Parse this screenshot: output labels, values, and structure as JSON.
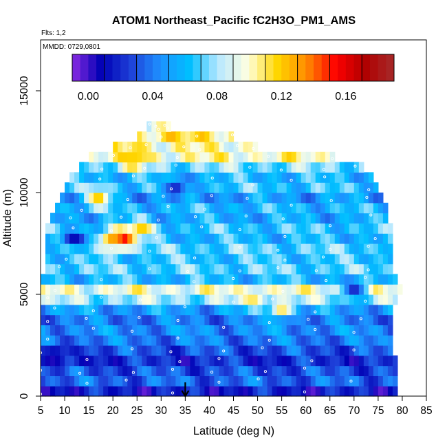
{
  "chart_data": {
    "type": "heatmap",
    "title": "ATOM1 Northeast_Pacific fC2H3O_PM1_AMS",
    "flights_label": "Flts: 1,2",
    "mmdd_label": "MMDD: 0729,0801",
    "xlabel": "Latitude (deg N)",
    "ylabel": "Altitude (m)",
    "xlim": [
      5,
      85
    ],
    "ylim": [
      0,
      17500
    ],
    "x_ticks": [
      "5",
      "10",
      "15",
      "20",
      "25",
      "30",
      "35",
      "40",
      "45",
      "50",
      "55",
      "60",
      "65",
      "70",
      "75",
      "80",
      "85"
    ],
    "y_ticks": [
      "0",
      "5000",
      "10000",
      "15000"
    ],
    "colorbar": {
      "ticks": [
        "0.00",
        "0.04",
        "0.08",
        "0.12",
        "0.16"
      ],
      "tick_values": [
        0.0,
        0.04,
        0.08,
        0.12,
        0.16
      ],
      "range": [
        -0.01,
        0.19
      ],
      "colors": [
        "#8a2be2",
        "#0000b4",
        "#1e40d8",
        "#1e90ff",
        "#00bfff",
        "#b8e8ff",
        "#ffffe0",
        "#ffd700",
        "#ff8c00",
        "#ff0000",
        "#b00000",
        "#a52a2a"
      ]
    },
    "arrow_latitude": 35,
    "altitude_bands_m": [
      0,
      500,
      1000,
      1500,
      2000,
      2500,
      3000,
      3500,
      4000,
      4500,
      5000,
      5500,
      6000,
      6500,
      7000,
      7500,
      8000,
      8500,
      9000,
      9500,
      10000,
      10500,
      11000,
      11500,
      12000,
      12500,
      13000
    ],
    "band_lat_extent": [
      [
        5,
        79
      ],
      [
        5,
        79
      ],
      [
        5,
        79
      ],
      [
        5,
        79
      ],
      [
        5,
        78
      ],
      [
        5,
        78
      ],
      [
        5,
        78
      ],
      [
        5,
        78
      ],
      [
        5,
        78
      ],
      [
        5,
        79
      ],
      [
        5,
        80
      ],
      [
        5,
        79
      ],
      [
        6,
        78
      ],
      [
        6,
        78
      ],
      [
        6,
        78
      ],
      [
        6,
        78
      ],
      [
        6,
        78
      ],
      [
        7,
        77
      ],
      [
        8,
        77
      ],
      [
        9,
        76
      ],
      [
        10,
        75
      ],
      [
        11,
        74
      ],
      [
        13,
        72
      ],
      [
        15,
        66
      ],
      [
        20,
        50
      ],
      [
        25,
        45
      ],
      [
        27,
        32
      ]
    ],
    "band_base_value": [
      0.015,
      0.035,
      0.03,
      0.02,
      0.03,
      0.04,
      0.045,
      0.04,
      0.05,
      0.08,
      0.095,
      0.06,
      0.07,
      0.065,
      0.07,
      0.06,
      0.065,
      0.055,
      0.06,
      0.05,
      0.065,
      0.06,
      0.075,
      0.1,
      0.1,
      0.11,
      0.09
    ],
    "hotspots": [
      {
        "lat": 22,
        "alt": 7750,
        "value": 0.17
      },
      {
        "lat": 20,
        "alt": 7750,
        "value": 0.13
      },
      {
        "lat": 26,
        "alt": 8250,
        "value": 0.12
      },
      {
        "lat": 25,
        "alt": 12000,
        "value": 0.12
      },
      {
        "lat": 24,
        "alt": 11500,
        "value": 0.12
      },
      {
        "lat": 17,
        "alt": 9750,
        "value": 0.12
      },
      {
        "lat": 55,
        "alt": 4250,
        "value": 0.11
      },
      {
        "lat": 49,
        "alt": 4750,
        "value": 0.11
      },
      {
        "lat": 8,
        "alt": 2000,
        "value": 0.0
      },
      {
        "lat": 12,
        "alt": 7750,
        "value": 0.01
      },
      {
        "lat": 33,
        "alt": 10250,
        "value": 0.02
      },
      {
        "lat": 70,
        "alt": 5250,
        "value": 0.02
      }
    ]
  }
}
